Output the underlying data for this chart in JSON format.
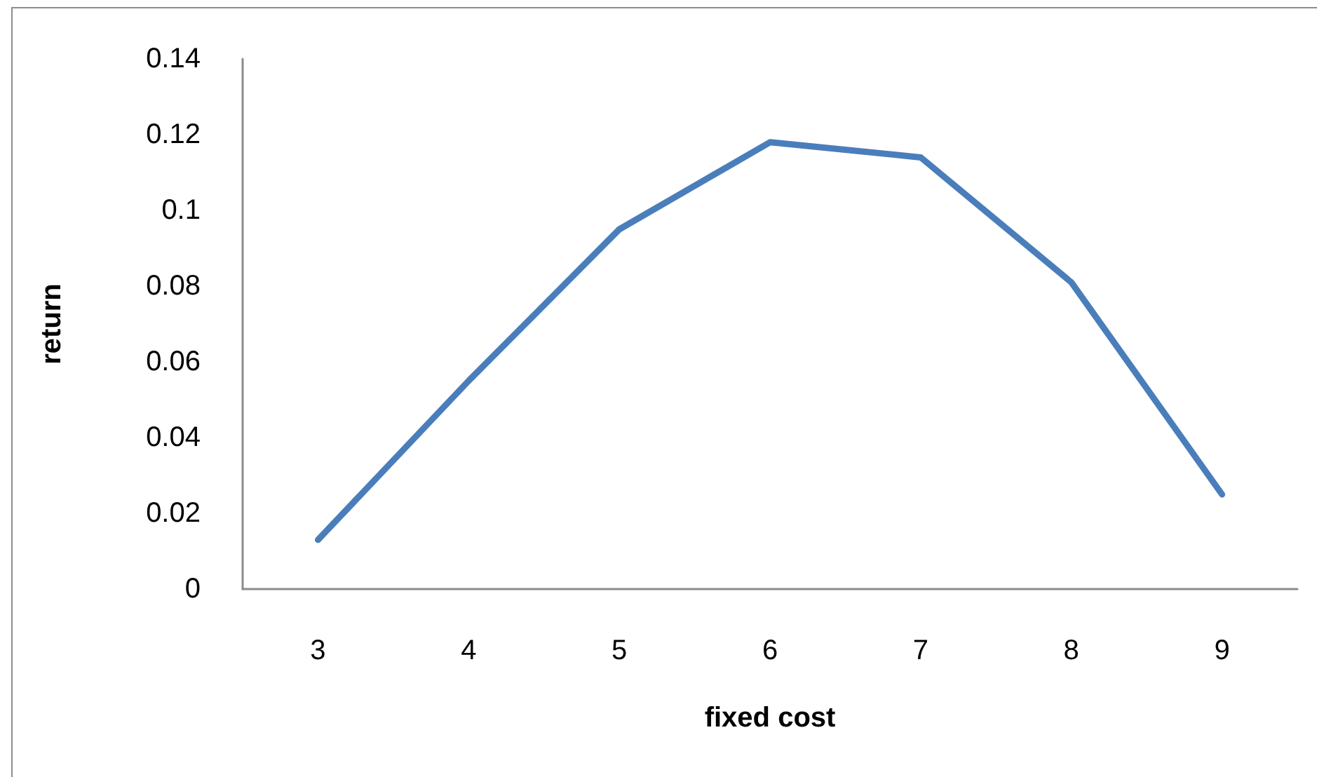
{
  "chart_data": {
    "type": "line",
    "xlabel": "fixed cost",
    "ylabel": "return",
    "categories": [
      "3",
      "4",
      "5",
      "6",
      "7",
      "8",
      "9"
    ],
    "values": [
      0.013,
      0.055,
      0.095,
      0.118,
      0.114,
      0.081,
      0.025
    ],
    "color": "#4a7ebb",
    "ylim": [
      0,
      0.14
    ],
    "yticks": [
      0,
      0.02,
      0.04,
      0.06,
      0.08,
      0.1,
      0.12,
      0.14
    ],
    "marker": "none",
    "line_style": "solid"
  }
}
